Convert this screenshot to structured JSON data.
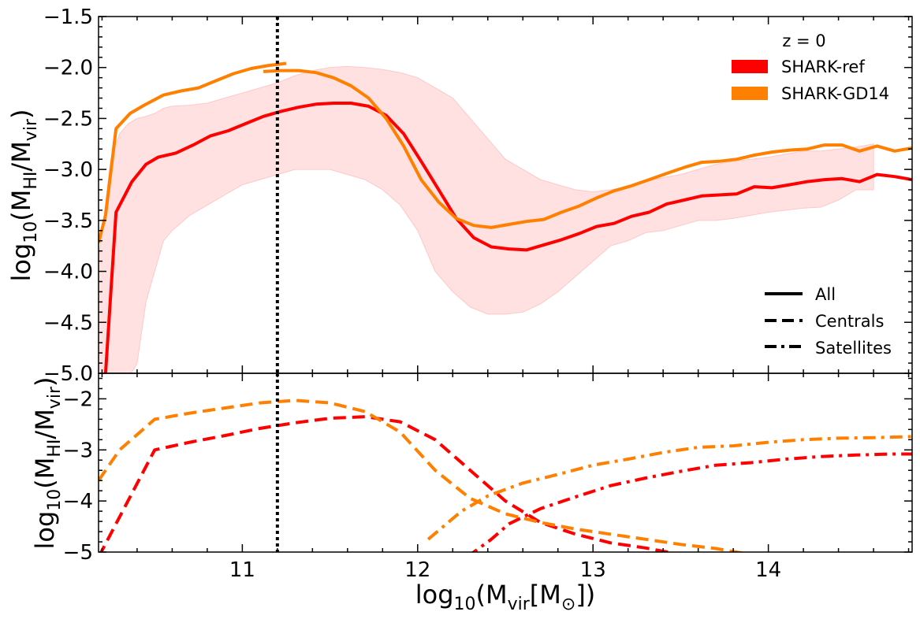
{
  "chart_data": {
    "type": "line",
    "xlabel": "log10(Mvir[M⊙])",
    "xticks": [
      11,
      12,
      13,
      14
    ],
    "xlim": [
      10.18,
      14.82
    ],
    "vline_x": 11.2,
    "colors": {
      "ref": "#ff0000",
      "gd14": "#ff8000",
      "band": "#ffdcdc",
      "band_edge": "#ffc8c8"
    },
    "legend_models": {
      "title": "z = 0",
      "entries": [
        {
          "label": "SHARK-ref",
          "color": "#ff0000"
        },
        {
          "label": "SHARK-GD14",
          "color": "#ff8000"
        }
      ]
    },
    "legend_styles": {
      "entries": [
        {
          "label": "All",
          "style": "solid"
        },
        {
          "label": "Centrals",
          "style": "dashed"
        },
        {
          "label": "Satellites",
          "style": "dashdot"
        }
      ]
    },
    "panels": [
      {
        "id": "top",
        "ylabel": "log10(MHI/Mvir)",
        "ylim": [
          -5.0,
          -1.5
        ],
        "yticks": [
          -5.0,
          -4.5,
          -4.0,
          -3.5,
          -3.0,
          -2.5,
          -2.0,
          -1.5
        ],
        "ytick_labels": [
          "−5.0",
          "−4.5",
          "−4.0",
          "−3.5",
          "−3.0",
          "−2.5",
          "−2.0",
          "−1.5"
        ],
        "band": {
          "name": "SHARK-ref 16-84 percentile range",
          "x": [
            10.18,
            10.25,
            10.3,
            10.35,
            10.4,
            10.45,
            10.5,
            10.55,
            10.6,
            10.7,
            10.8,
            10.9,
            11.0,
            11.1,
            11.2,
            11.3,
            11.4,
            11.5,
            11.6,
            11.7,
            11.8,
            11.9,
            12.0,
            12.1,
            12.2,
            12.3,
            12.4,
            12.5,
            12.6,
            12.7,
            12.8,
            12.9,
            13.0,
            13.1,
            13.2,
            13.3,
            13.4,
            13.5,
            13.6,
            13.7,
            13.8,
            13.9,
            14.0,
            14.1,
            14.2,
            14.3,
            14.4,
            14.5,
            14.6
          ],
          "upper": [
            -3.9,
            -2.9,
            -2.65,
            -2.55,
            -2.5,
            -2.48,
            -2.45,
            -2.4,
            -2.38,
            -2.37,
            -2.35,
            -2.3,
            -2.25,
            -2.2,
            -2.15,
            -2.08,
            -2.03,
            -2.0,
            -1.99,
            -2.0,
            -2.02,
            -2.05,
            -2.1,
            -2.2,
            -2.3,
            -2.5,
            -2.7,
            -2.9,
            -3.0,
            -3.1,
            -3.15,
            -3.2,
            -3.22,
            -3.2,
            -3.17,
            -3.12,
            -3.08,
            -3.05,
            -3.0,
            -2.95,
            -2.92,
            -2.9,
            -2.88,
            -2.85,
            -2.82,
            -2.82,
            -2.8,
            -2.78,
            -2.75
          ],
          "lower": [
            -5.1,
            -5.1,
            -5.1,
            -5.05,
            -4.9,
            -4.3,
            -4.0,
            -3.7,
            -3.6,
            -3.45,
            -3.35,
            -3.25,
            -3.15,
            -3.1,
            -3.05,
            -3.0,
            -3.0,
            -3.0,
            -3.05,
            -3.1,
            -3.2,
            -3.35,
            -3.6,
            -4.0,
            -4.2,
            -4.35,
            -4.42,
            -4.42,
            -4.4,
            -4.32,
            -4.2,
            -4.05,
            -3.9,
            -3.75,
            -3.7,
            -3.62,
            -3.6,
            -3.55,
            -3.5,
            -3.5,
            -3.48,
            -3.45,
            -3.42,
            -3.4,
            -3.38,
            -3.37,
            -3.3,
            -3.2,
            -3.2
          ]
        },
        "series": [
          {
            "name": "SHARK-ref All",
            "color": "#ff0000",
            "style": "solid",
            "x": [
              10.22,
              10.28,
              10.37,
              10.45,
              10.52,
              10.62,
              10.72,
              10.82,
              10.92,
              11.02,
              11.12,
              11.22,
              11.32,
              11.42,
              11.52,
              11.62,
              11.72,
              11.82,
              11.92,
              12.02,
              12.12,
              12.22,
              12.32,
              12.42,
              12.52,
              12.62,
              12.72,
              12.82,
              12.92,
              13.02,
              13.12,
              13.22,
              13.32,
              13.42,
              13.52,
              13.62,
              13.72,
              13.82,
              13.92,
              14.02,
              14.12,
              14.22,
              14.32,
              14.42,
              14.52,
              14.62,
              14.72,
              14.82
            ],
            "y": [
              -5.0,
              -3.42,
              -3.12,
              -2.95,
              -2.88,
              -2.84,
              -2.76,
              -2.67,
              -2.62,
              -2.55,
              -2.48,
              -2.43,
              -2.39,
              -2.36,
              -2.35,
              -2.35,
              -2.38,
              -2.47,
              -2.65,
              -2.92,
              -3.2,
              -3.48,
              -3.67,
              -3.76,
              -3.78,
              -3.79,
              -3.74,
              -3.69,
              -3.63,
              -3.56,
              -3.53,
              -3.46,
              -3.42,
              -3.34,
              -3.3,
              -3.26,
              -3.25,
              -3.24,
              -3.17,
              -3.18,
              -3.15,
              -3.12,
              -3.1,
              -3.09,
              -3.12,
              -3.05,
              -3.07,
              -3.1
            ]
          },
          {
            "name": "SHARK-GD14 All",
            "color": "#ff8000",
            "style": "solid",
            "x": [
              10.18,
              10.22,
              10.28,
              10.36,
              10.44,
              10.55,
              10.65,
              10.75,
              10.85,
              10.95,
              11.05,
              11.15,
              11.25
            ],
            "y": [
              -3.72,
              -3.45,
              -2.6,
              -2.45,
              -2.37,
              -2.27,
              -2.23,
              -2.2,
              -2.13,
              -2.06,
              -2.01,
              -1.98,
              -1.96
            ]
          },
          {
            "name": "SHARK-GD14 All (resolved)",
            "color": "#ff8000",
            "style": "solid",
            "x": [
              11.12,
              11.22,
              11.32,
              11.42,
              11.52,
              11.62,
              11.72,
              11.82,
              11.92,
              12.02,
              12.12,
              12.22,
              12.32,
              12.42,
              12.52,
              12.62,
              12.72,
              12.82,
              12.92,
              13.02,
              13.12,
              13.22,
              13.32,
              13.42,
              13.52,
              13.62,
              13.72,
              13.82,
              13.92,
              14.02,
              14.12,
              14.22,
              14.32,
              14.42,
              14.52,
              14.62,
              14.72,
              14.82
            ],
            "y": [
              -2.04,
              -2.03,
              -2.03,
              -2.05,
              -2.1,
              -2.18,
              -2.3,
              -2.5,
              -2.77,
              -3.1,
              -3.32,
              -3.48,
              -3.55,
              -3.57,
              -3.54,
              -3.51,
              -3.49,
              -3.42,
              -3.36,
              -3.28,
              -3.21,
              -3.16,
              -3.1,
              -3.04,
              -2.98,
              -2.93,
              -2.92,
              -2.9,
              -2.86,
              -2.83,
              -2.81,
              -2.8,
              -2.76,
              -2.76,
              -2.82,
              -2.77,
              -2.82,
              -2.79
            ]
          }
        ]
      },
      {
        "id": "bottom",
        "ylabel": "log10(MHI/Mvir)",
        "ylim": [
          -5.0,
          -1.5
        ],
        "yticks": [
          -5,
          -4,
          -3,
          -2
        ],
        "ytick_labels": [
          "−5",
          "−4",
          "−3",
          "−2"
        ],
        "series": [
          {
            "name": "SHARK-ref Centrals",
            "color": "#ff0000",
            "style": "dashed",
            "x": [
              10.18,
              10.5,
              10.7,
              10.9,
              11.1,
              11.3,
              11.5,
              11.7,
              11.9,
              12.1,
              12.3,
              12.5,
              12.7,
              12.9,
              13.1,
              13.3,
              13.5,
              13.7
            ],
            "y": [
              -5.1,
              -3.0,
              -2.85,
              -2.72,
              -2.58,
              -2.47,
              -2.38,
              -2.35,
              -2.45,
              -2.8,
              -3.4,
              -4.0,
              -4.42,
              -4.65,
              -4.82,
              -4.92,
              -5.05,
              -5.15
            ]
          },
          {
            "name": "SHARK-GD14 Centrals",
            "color": "#ff8000",
            "style": "dashed",
            "x": [
              10.18,
              10.3,
              10.5,
              10.7,
              10.9,
              11.1,
              11.3,
              11.5,
              11.7,
              11.9,
              12.1,
              12.3,
              12.5,
              12.7,
              12.9,
              13.1,
              13.3,
              13.5,
              13.7,
              13.9
            ],
            "y": [
              -3.6,
              -3.0,
              -2.4,
              -2.28,
              -2.18,
              -2.08,
              -2.03,
              -2.08,
              -2.25,
              -2.65,
              -3.4,
              -3.95,
              -4.25,
              -4.42,
              -4.55,
              -4.65,
              -4.75,
              -4.85,
              -4.93,
              -5.05
            ]
          },
          {
            "name": "SHARK-ref Satellites",
            "color": "#ff0000",
            "style": "dashdot",
            "x": [
              12.28,
              12.42,
              12.52,
              12.7,
              12.9,
              13.1,
              13.3,
              13.5,
              13.7,
              13.9,
              14.1,
              14.3,
              14.5,
              14.7,
              14.82
            ],
            "y": [
              -5.1,
              -4.75,
              -4.45,
              -4.15,
              -3.92,
              -3.7,
              -3.55,
              -3.42,
              -3.3,
              -3.25,
              -3.18,
              -3.13,
              -3.1,
              -3.08,
              -3.08
            ]
          },
          {
            "name": "SHARK-GD14 Satellites",
            "color": "#ff8000",
            "style": "dashdot",
            "x": [
              12.06,
              12.25,
              12.4,
              12.6,
              12.8,
              13.0,
              13.2,
              13.4,
              13.6,
              13.8,
              14.0,
              14.2,
              14.4,
              14.6,
              14.82
            ],
            "y": [
              -4.75,
              -4.2,
              -3.9,
              -3.65,
              -3.48,
              -3.3,
              -3.18,
              -3.05,
              -2.95,
              -2.92,
              -2.85,
              -2.8,
              -2.77,
              -2.76,
              -2.74
            ]
          }
        ]
      }
    ]
  }
}
